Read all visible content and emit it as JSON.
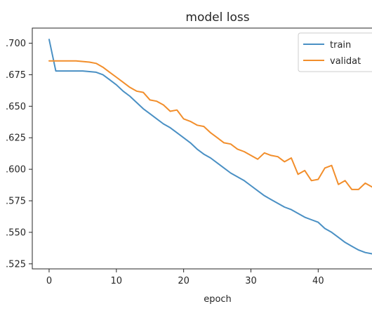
{
  "chart_data": {
    "type": "line",
    "title": "model loss",
    "xlabel": "epoch",
    "ylabel": "",
    "xlim": [
      -2.5,
      48
    ],
    "ylim": [
      0.521,
      0.712
    ],
    "xticks": [
      0,
      10,
      20,
      30,
      40
    ],
    "yticks": [
      0.525,
      0.55,
      0.575,
      0.6,
      0.625,
      0.65,
      0.675,
      0.7
    ],
    "ytick_labels": [
      ".525",
      ".550",
      ".575",
      ".600",
      ".625",
      ".650",
      ".675",
      ".700"
    ],
    "grid": false,
    "legend_position": "top-right",
    "series": [
      {
        "name": "train",
        "color": "#4a90c4",
        "x": [
          0,
          1,
          2,
          3,
          4,
          5,
          6,
          7,
          8,
          9,
          10,
          11,
          12,
          13,
          14,
          15,
          16,
          17,
          18,
          19,
          20,
          21,
          22,
          23,
          24,
          25,
          26,
          27,
          28,
          29,
          30,
          31,
          32,
          33,
          34,
          35,
          36,
          37,
          38,
          39,
          40,
          41,
          42,
          43,
          44,
          45,
          46,
          47,
          48
        ],
        "values": [
          0.703,
          0.678,
          0.678,
          0.678,
          0.678,
          0.678,
          0.6775,
          0.677,
          0.675,
          0.671,
          0.667,
          0.662,
          0.658,
          0.653,
          0.648,
          0.644,
          0.64,
          0.636,
          0.633,
          0.629,
          0.625,
          0.621,
          0.616,
          0.612,
          0.609,
          0.605,
          0.601,
          0.597,
          0.594,
          0.591,
          0.587,
          0.583,
          0.579,
          0.576,
          0.573,
          0.57,
          0.568,
          0.565,
          0.562,
          0.56,
          0.558,
          0.553,
          0.55,
          0.546,
          0.542,
          0.539,
          0.536,
          0.534,
          0.533
        ]
      },
      {
        "name": "validation",
        "color": "#f28e2b",
        "x": [
          0,
          1,
          2,
          3,
          4,
          5,
          6,
          7,
          8,
          9,
          10,
          11,
          12,
          13,
          14,
          15,
          16,
          17,
          18,
          19,
          20,
          21,
          22,
          23,
          24,
          25,
          26,
          27,
          28,
          29,
          30,
          31,
          32,
          33,
          34,
          35,
          36,
          37,
          38,
          39,
          40,
          41,
          42,
          43,
          44,
          45,
          46,
          47,
          48
        ],
        "values": [
          0.686,
          0.686,
          0.686,
          0.686,
          0.686,
          0.6855,
          0.685,
          0.684,
          0.681,
          0.677,
          0.673,
          0.669,
          0.665,
          0.662,
          0.661,
          0.655,
          0.654,
          0.651,
          0.646,
          0.647,
          0.64,
          0.638,
          0.635,
          0.634,
          0.629,
          0.625,
          0.621,
          0.62,
          0.616,
          0.614,
          0.611,
          0.608,
          0.613,
          0.611,
          0.61,
          0.606,
          0.609,
          0.596,
          0.599,
          0.591,
          0.592,
          0.601,
          0.603,
          0.588,
          0.591,
          0.584,
          0.584,
          0.589,
          0.586
        ]
      }
    ]
  },
  "legend": {
    "items": [
      {
        "label": "train",
        "color": "#4a90c4"
      },
      {
        "label": "validat",
        "color": "#f28e2b"
      }
    ]
  }
}
